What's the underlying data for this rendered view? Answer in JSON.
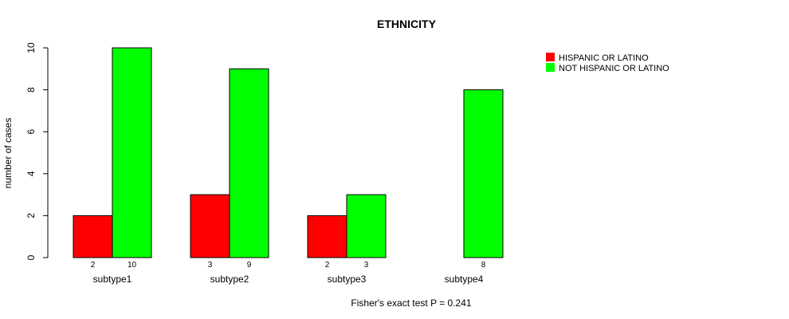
{
  "chart_data": {
    "type": "bar",
    "title": "ETHNICITY",
    "xlabel": "Fisher's exact test P = 0.241",
    "ylabel": "number of cases",
    "categories": [
      "subtype1",
      "subtype2",
      "subtype3",
      "subtype4"
    ],
    "series": [
      {
        "name": "HISPANIC OR LATINO",
        "color": "#ff0000",
        "values": [
          2,
          3,
          2,
          0
        ],
        "labels": [
          "2",
          "3",
          "2",
          ""
        ]
      },
      {
        "name": "NOT HISPANIC OR LATINO",
        "color": "#00ff00",
        "values": [
          10,
          9,
          3,
          8
        ],
        "labels": [
          "10",
          "9",
          "3",
          "8"
        ]
      }
    ],
    "ylim": [
      0,
      10
    ],
    "yticks": [
      0,
      2,
      4,
      6,
      8,
      10
    ],
    "grid": false,
    "legend_position": "top-right"
  }
}
